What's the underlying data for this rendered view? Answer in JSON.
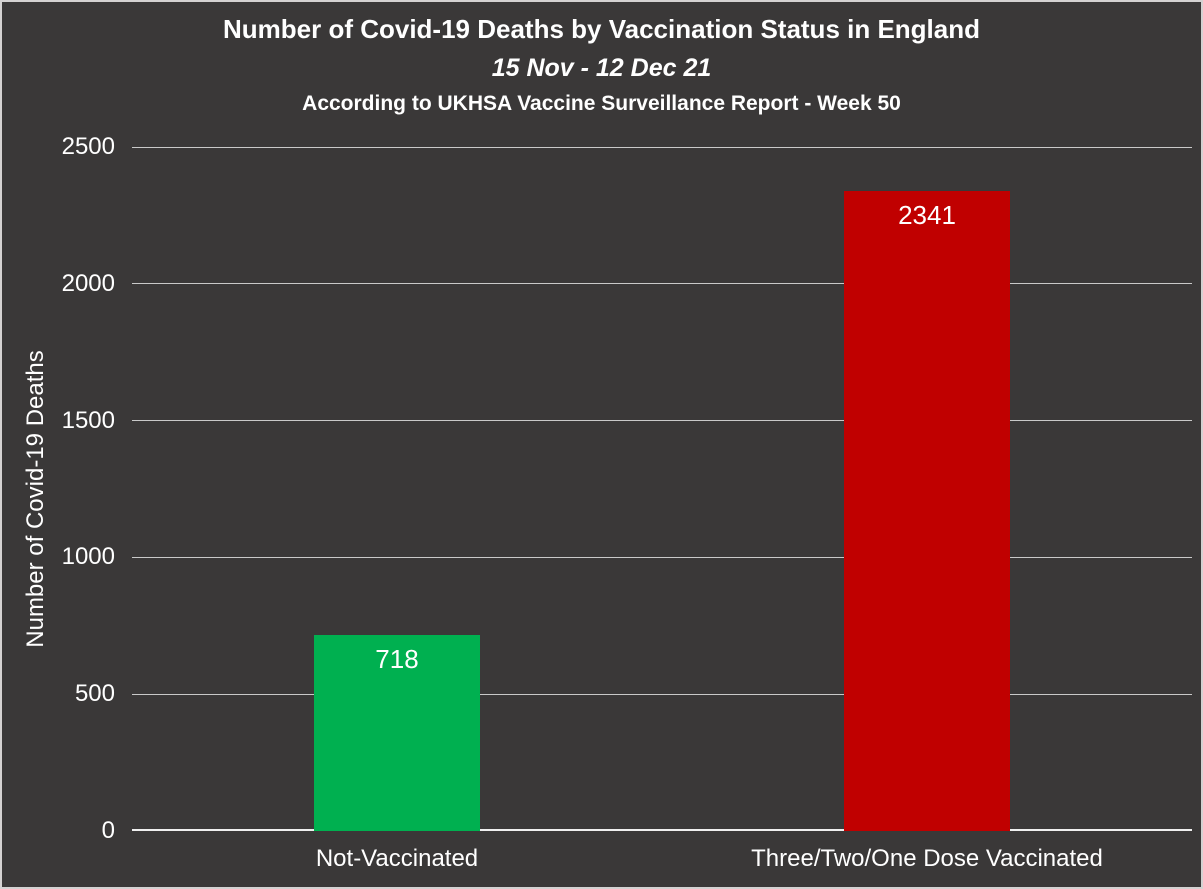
{
  "header": {
    "title": "Number of Covid-19 Deaths by Vaccination Status in England",
    "subtitle": "15 Nov - 12 Dec 21",
    "source_line": "According to UKHSA Vaccine Surveillance Report - Week 50"
  },
  "chart_data": {
    "type": "bar",
    "title": "Number of Covid-19 Deaths by Vaccination Status in England",
    "subtitle": "15 Nov - 12 Dec 21",
    "subtitle2": "According to UKHSA Vaccine Surveillance Report - Week 50",
    "categories": [
      "Not-Vaccinated",
      "Three/Two/One Dose Vaccinated"
    ],
    "values": [
      718,
      2341
    ],
    "bar_colors": [
      "#00B050",
      "#C00000"
    ],
    "value_labels": [
      "718",
      "2341"
    ],
    "value_label_color": "#FFFFFF",
    "xlabel": "",
    "ylabel": "Number of Covid-19 Deaths",
    "ylim": [
      0,
      2500
    ],
    "yticks": [
      0,
      500,
      1000,
      1500,
      2000,
      2500
    ],
    "grid": true,
    "legend": "none",
    "colors": {
      "background": "#3A3838",
      "text": "#FFFFFF",
      "gridline": "#C9C9C9",
      "axis_line": "#EFEFEF",
      "outer_border": "#D4D2D2"
    }
  }
}
